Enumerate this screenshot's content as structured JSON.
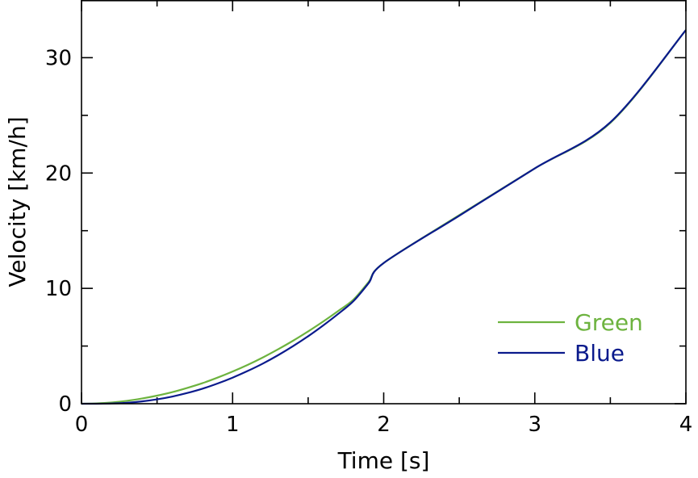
{
  "chart_data": {
    "type": "line",
    "title": "",
    "xlabel": "Time [s]",
    "ylabel": "Velocity [km/h]",
    "xlim": [
      0,
      4
    ],
    "ylim": [
      0,
      35
    ],
    "xticks": [
      0,
      1,
      2,
      3,
      4
    ],
    "yticks": [
      0,
      10,
      20,
      30
    ],
    "grid": false,
    "legend_position": "bottom-right",
    "series": [
      {
        "name": "Green",
        "color": "#6db33f",
        "x": [
          0,
          0.1,
          0.2,
          0.3,
          0.4,
          0.5,
          0.6,
          0.7,
          0.8,
          0.9,
          1.0,
          1.1,
          1.2,
          1.3,
          1.4,
          1.5,
          1.6,
          1.7,
          1.8,
          1.9,
          2.0,
          2.5,
          3.0,
          3.5,
          4.0
        ],
        "y": [
          0,
          0.03,
          0.11,
          0.25,
          0.45,
          0.7,
          1.0,
          1.37,
          1.78,
          2.26,
          2.79,
          3.37,
          4.01,
          4.71,
          5.46,
          6.27,
          7.13,
          8.05,
          9.03,
          10.55,
          12.2,
          16.35,
          20.4,
          24.35,
          32.4
        ]
      },
      {
        "name": "Blue",
        "color": "#0a1a8c",
        "x": [
          0,
          0.1,
          0.2,
          0.3,
          0.4,
          0.5,
          0.6,
          0.7,
          0.8,
          0.9,
          1.0,
          1.1,
          1.2,
          1.3,
          1.4,
          1.5,
          1.6,
          1.7,
          1.8,
          1.9,
          2.0,
          2.5,
          3.0,
          3.5,
          4.0
        ],
        "y": [
          0,
          0.0,
          0.02,
          0.08,
          0.2,
          0.38,
          0.62,
          0.93,
          1.3,
          1.75,
          2.26,
          2.84,
          3.48,
          4.2,
          4.99,
          5.85,
          6.79,
          7.8,
          8.9,
          10.45,
          12.2,
          16.3,
          20.4,
          24.4,
          32.4
        ]
      }
    ]
  }
}
